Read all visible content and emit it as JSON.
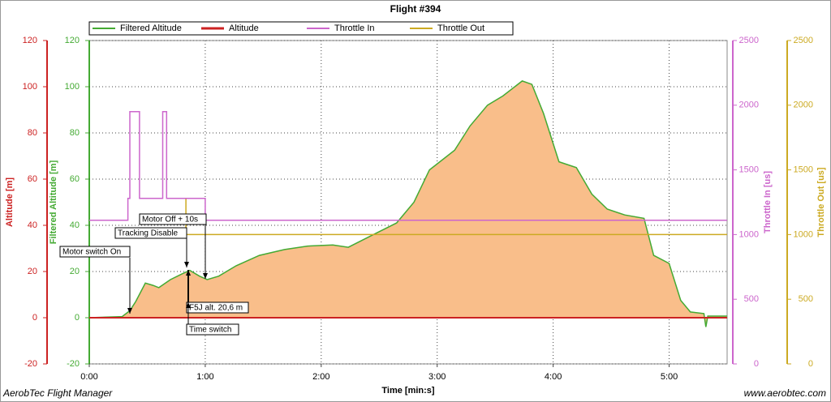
{
  "chart_data": {
    "type": "line",
    "title": "Flight #394",
    "x_label": "Time [min:s]",
    "xlim": [
      0,
      330
    ],
    "xticks": [
      {
        "value": 0,
        "label": "0:00"
      },
      {
        "value": 60,
        "label": "1:00"
      },
      {
        "value": 120,
        "label": "2:00"
      },
      {
        "value": 180,
        "label": "3:00"
      },
      {
        "value": 240,
        "label": "4:00"
      },
      {
        "value": 300,
        "label": "5:00"
      }
    ],
    "grid": true,
    "axes": [
      {
        "label": "Altitude [m]",
        "color": "#cc2222",
        "lim": [
          -20,
          120
        ],
        "ticks": [
          120,
          100,
          80,
          60,
          40,
          20,
          0,
          -20
        ]
      },
      {
        "label": "Filtered Altitude [m]",
        "color": "#44aa33",
        "lim": [
          -20,
          120
        ],
        "ticks": [
          120,
          100,
          80,
          60,
          40,
          20,
          0,
          -20
        ]
      },
      {
        "label": "Throttle In [us]",
        "color": "#cc66cc",
        "lim": [
          0,
          2500
        ],
        "ticks": [
          2500,
          2000,
          1500,
          1000,
          500,
          0
        ]
      },
      {
        "label": "Throttle Out [us]",
        "color": "#ccaa22",
        "lim": [
          0,
          2500
        ],
        "ticks": [
          2500,
          2000,
          1500,
          1000,
          500,
          0
        ]
      }
    ],
    "series": [
      {
        "name": "Filtered Altitude",
        "color": "#44aa33",
        "fill": "#f9be8a",
        "axis": 1,
        "x": [
          0,
          17,
          21,
          24,
          29,
          33,
          36,
          42,
          48,
          52,
          57,
          61,
          67,
          76,
          88,
          101,
          113,
          126,
          134,
          147,
          159,
          168,
          176,
          189,
          197,
          206,
          214,
          224,
          229,
          235,
          243,
          252,
          260,
          268,
          277,
          287,
          292,
          300,
          306,
          311,
          318,
          319,
          320,
          330
        ],
        "values": [
          0,
          0.5,
          3,
          7,
          15,
          14,
          13,
          16.5,
          19,
          20.5,
          18,
          16.5,
          18,
          22.5,
          27,
          29.5,
          31,
          31.5,
          30.5,
          36,
          41,
          50,
          64,
          72.5,
          83,
          92,
          96,
          102.5,
          101,
          88.5,
          67.5,
          65,
          53.5,
          47,
          44.5,
          43,
          27,
          23.5,
          7.5,
          2.5,
          1.8,
          -4,
          0.7,
          0.7
        ]
      },
      {
        "name": "Altitude",
        "color": "#cc2222",
        "axis": 0,
        "x": [
          0,
          330
        ],
        "values": [
          0,
          0
        ]
      },
      {
        "name": "Throttle In",
        "color": "#cc66cc",
        "axis": 2,
        "x": [
          0,
          20,
          20,
          21,
          21,
          26,
          26,
          38,
          38,
          40,
          40,
          60,
          60,
          330
        ],
        "values": [
          1110,
          1110,
          1280,
          1280,
          1950,
          1950,
          1280,
          1280,
          1950,
          1950,
          1280,
          1280,
          1110,
          1110
        ]
      },
      {
        "name": "Throttle Out",
        "color": "#ccaa22",
        "axis": 3,
        "x": [
          50,
          50,
          330
        ],
        "values": [
          1280,
          1000,
          1000
        ]
      }
    ],
    "annotations": [
      "Motor switch On",
      "Tracking Disable",
      "Motor Off + 10s",
      "F5J alt. 20,6 m",
      "Time switch"
    ],
    "footer": {
      "left": "AerobTec Flight Manager",
      "right": "www.aerobtec.com"
    }
  }
}
